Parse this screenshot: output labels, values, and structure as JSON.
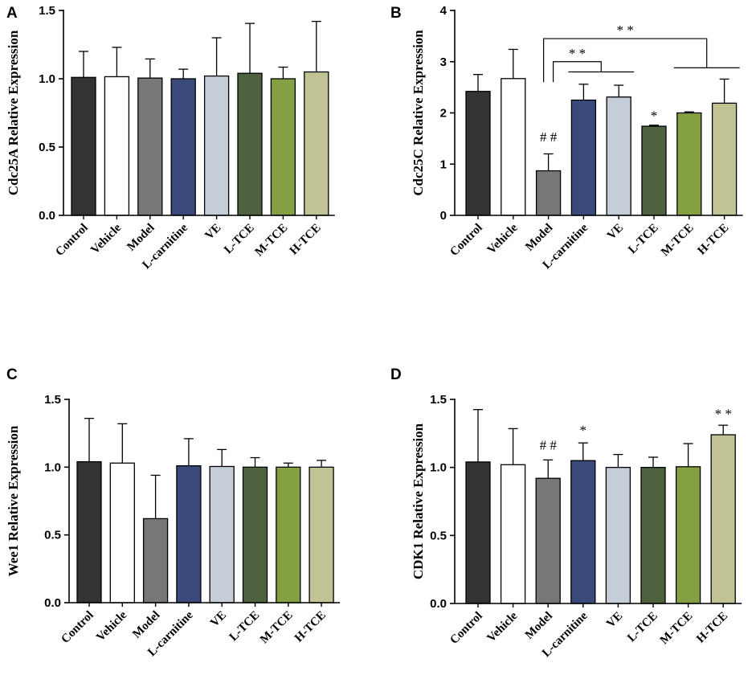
{
  "chart_data": [
    {
      "type": "bar",
      "panel": "A",
      "ylabel": "Cdc25A Relative Expression",
      "categories": [
        "Control",
        "Vehicle",
        "Model",
        "L-carnitine",
        "VE",
        "L-TCE",
        "M-TCE",
        "H-TCE"
      ],
      "values": [
        1.01,
        1.015,
        1.005,
        1.0,
        1.02,
        1.04,
        1.0,
        1.05
      ],
      "errors": [
        0.19,
        0.215,
        0.14,
        0.07,
        0.28,
        0.365,
        0.085,
        0.37
      ],
      "colors": [
        "#333333",
        "#ffffff",
        "#777777",
        "#3a4a7a",
        "#c5ced8",
        "#4e6240",
        "#85a042",
        "#c2c394"
      ],
      "ylim": [
        0,
        1.5
      ],
      "yticks": [
        "0.0",
        "0.5",
        "1.0",
        "1.5"
      ],
      "annotations": [],
      "brackets": []
    },
    {
      "type": "bar",
      "panel": "B",
      "ylabel": "Cdc25C Relative Expression",
      "categories": [
        "Control",
        "Vehicle",
        "Model",
        "L-carnitine",
        "VE",
        "L-TCE",
        "M-TCE",
        "H-TCE"
      ],
      "values": [
        2.42,
        2.67,
        0.87,
        2.25,
        2.31,
        1.74,
        2.0,
        2.19
      ],
      "errors": [
        0.33,
        0.57,
        0.33,
        0.31,
        0.23,
        0.02,
        0.02,
        0.47
      ],
      "colors": [
        "#333333",
        "#ffffff",
        "#777777",
        "#3a4a7a",
        "#c5ced8",
        "#4e6240",
        "#85a042",
        "#c2c394"
      ],
      "ylim": [
        0,
        4
      ],
      "yticks": [
        "0",
        "1",
        "2",
        "3",
        "4"
      ],
      "annotations": [
        {
          "category": "Model",
          "text": "# #",
          "y": 1.44
        },
        {
          "category": "L-TCE",
          "text": "*",
          "y": 1.86
        }
      ],
      "brackets": [
        {
          "text": "* *",
          "left": "Model",
          "right": "L-carnitine",
          "right_end": "VE",
          "y": 3.0,
          "drop": 2.6,
          "group_y": 2.8
        },
        {
          "text": "* *",
          "left": "Model",
          "right": "M-TCE",
          "right_end": "H-TCE",
          "y": 3.45,
          "drop": 2.6,
          "group_y": 2.88
        }
      ]
    },
    {
      "type": "bar",
      "panel": "C",
      "ylabel": "Wee1 Relative Expression",
      "categories": [
        "Control",
        "Vehicle",
        "Model",
        "L-carnitine",
        "VE",
        "L-TCE",
        "M-TCE",
        "H-TCE"
      ],
      "values": [
        1.04,
        1.03,
        0.62,
        1.01,
        1.005,
        1.0,
        1.0,
        1.0
      ],
      "errors": [
        0.32,
        0.29,
        0.32,
        0.2,
        0.125,
        0.07,
        0.03,
        0.05
      ],
      "colors": [
        "#333333",
        "#ffffff",
        "#777777",
        "#3a4a7a",
        "#c5ced8",
        "#4e6240",
        "#85a042",
        "#c2c394"
      ],
      "ylim": [
        0,
        1.5
      ],
      "yticks": [
        "0.0",
        "0.5",
        "1.0",
        "1.5"
      ],
      "annotations": [],
      "brackets": []
    },
    {
      "type": "bar",
      "panel": "D",
      "ylabel": "CDK1 Relative Expression",
      "categories": [
        "Control",
        "Vehicle",
        "Model",
        "L-carnitine",
        "VE",
        "L-TCE",
        "M-TCE",
        "H-TCE"
      ],
      "values": [
        1.04,
        1.02,
        0.92,
        1.05,
        1.0,
        1.0,
        1.005,
        1.24
      ],
      "errors": [
        0.385,
        0.265,
        0.135,
        0.13,
        0.095,
        0.075,
        0.17,
        0.07
      ],
      "colors": [
        "#333333",
        "#ffffff",
        "#777777",
        "#3a4a7a",
        "#c5ced8",
        "#4e6240",
        "#85a042",
        "#c2c394"
      ],
      "ylim": [
        0,
        1.5
      ],
      "yticks": [
        "0.0",
        "0.5",
        "1.0",
        "1.5"
      ],
      "annotations": [
        {
          "category": "Model",
          "text": "# #",
          "y": 1.13
        },
        {
          "category": "L-carnitine",
          "text": "*",
          "y": 1.24
        },
        {
          "category": "H-TCE",
          "text": "* *",
          "y": 1.36
        }
      ],
      "brackets": []
    }
  ]
}
